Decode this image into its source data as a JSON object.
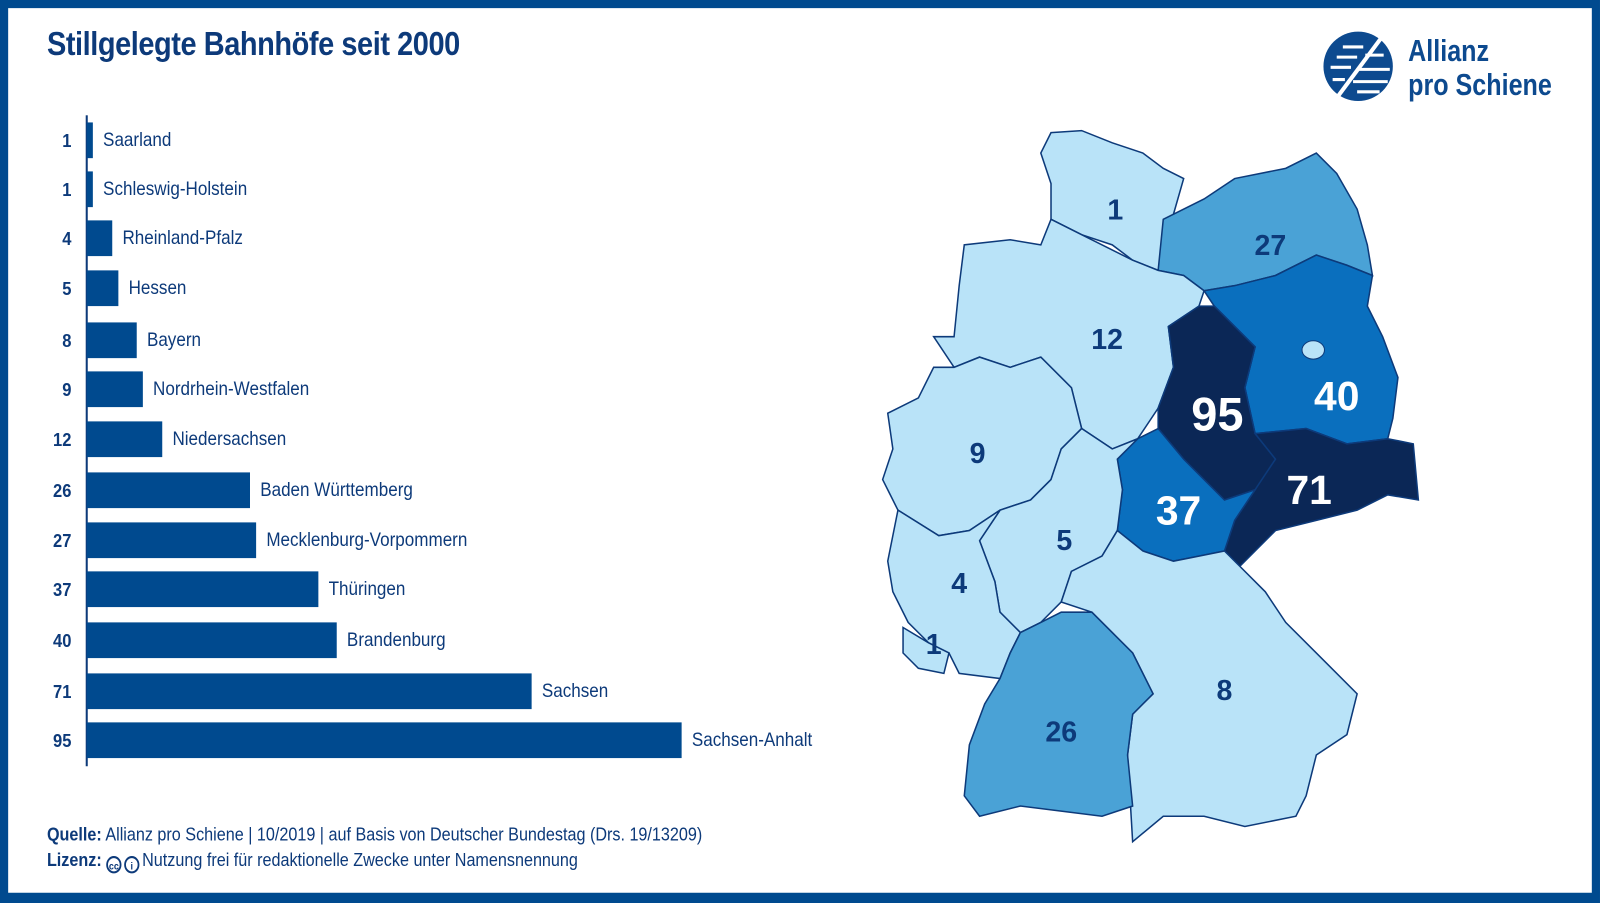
{
  "title": "Stillgelegte Bahnhöfe seit 2000",
  "logo": {
    "line1": "Allianz",
    "line2": "pro Schiene"
  },
  "footer": {
    "source_label": "Quelle:",
    "source_text": "Allianz pro Schiene | 10/2019 | auf Basis von Deutscher Bundestag (Drs. 19/13209)",
    "license_label": "Lizenz:",
    "license_icons": [
      "cc-icon",
      "by-attribution-icon"
    ],
    "license_text": "Nutzung frei für redaktionelle Zwecke unter Namensnennung"
  },
  "colors": {
    "bar": "#004a8f",
    "frame": "#004a8f",
    "map_light": "#b9e3f8",
    "map_mid": "#4aa2d6",
    "map_strong": "#0a6fbe",
    "map_dark": "#0b2756"
  },
  "chart_data": {
    "type": "bar",
    "orientation": "horizontal",
    "title": "Stillgelegte Bahnhöfe seit 2000",
    "categories": [
      "Saarland",
      "Schleswig-Holstein",
      "Rheinland-Pfalz",
      "Hessen",
      "Bayern",
      "Nordrhein-Westfalen",
      "Niedersachsen",
      "Baden Württemberg",
      "Mecklenburg-Vorpommern",
      "Thüringen",
      "Brandenburg",
      "Sachsen",
      "Sachsen-Anhalt"
    ],
    "values": [
      1,
      1,
      4,
      5,
      8,
      9,
      12,
      26,
      27,
      37,
      40,
      71,
      95
    ],
    "grid": false,
    "map": {
      "type": "choropleth",
      "regions": [
        {
          "state": "Schleswig-Holstein",
          "value": 1
        },
        {
          "state": "Mecklenburg-Vorpommern",
          "value": 27
        },
        {
          "state": "Niedersachsen",
          "value": 12
        },
        {
          "state": "Brandenburg",
          "value": 40
        },
        {
          "state": "Sachsen-Anhalt",
          "value": 95
        },
        {
          "state": "Sachsen",
          "value": 71
        },
        {
          "state": "Thüringen",
          "value": 37
        },
        {
          "state": "Nordrhein-Westfalen",
          "value": 9
        },
        {
          "state": "Hessen",
          "value": 5
        },
        {
          "state": "Rheinland-Pfalz",
          "value": 4
        },
        {
          "state": "Saarland",
          "value": 1
        },
        {
          "state": "Bayern",
          "value": 8
        },
        {
          "state": "Baden Württemberg",
          "value": 26
        }
      ]
    }
  }
}
